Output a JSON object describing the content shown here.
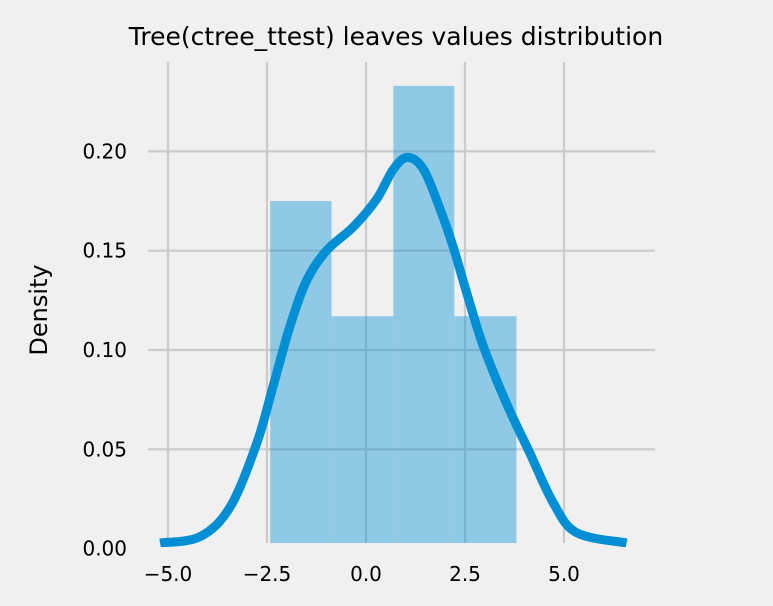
{
  "chart_data": {
    "type": "bar",
    "title": "Tree(ctree_ttest) leaves values distribution",
    "xlabel": "",
    "ylabel": "Density",
    "xlim": [
      -5.5,
      6.9
    ],
    "ylim": [
      0,
      0.245
    ],
    "grid": true,
    "x_ticks": [
      "−5.0",
      "−2.5",
      "0.0",
      "2.5",
      "5.0"
    ],
    "x_tick_values": [
      -5,
      -2.5,
      0,
      2.5,
      5
    ],
    "y_ticks": [
      "0.00",
      "0.05",
      "0.10",
      "0.15",
      "0.20"
    ],
    "y_tick_values": [
      0,
      0.05,
      0.1,
      0.15,
      0.2
    ],
    "histogram": {
      "bin_edges": [
        -2.42,
        -0.87,
        0.69,
        2.23,
        3.8
      ],
      "values": [
        0.175,
        0.117,
        0.233,
        0.117
      ]
    },
    "kde": {
      "x": [
        -5.2,
        -4.19,
        -3.43,
        -2.76,
        -2.35,
        -1.92,
        -1.5,
        -1.0,
        -0.32,
        0.27,
        0.69,
        1.05,
        1.45,
        1.87,
        2.2,
        2.54,
        2.96,
        3.55,
        4.14,
        4.73,
        5.32,
        6.58
      ],
      "y": [
        0.0,
        0.006,
        0.021,
        0.053,
        0.0815,
        0.112,
        0.135,
        0.15,
        0.162,
        0.176,
        0.191,
        0.197,
        0.191,
        0.171,
        0.152,
        0.129,
        0.102,
        0.073,
        0.048,
        0.023,
        0.008,
        0.0
      ]
    },
    "colors": {
      "bar": "#008fd5",
      "line": "#008fd5",
      "background": "#f0f0f0",
      "grid": "#cbcbcb"
    }
  }
}
